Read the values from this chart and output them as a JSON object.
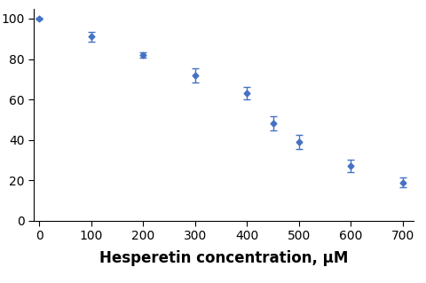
{
  "x": [
    0,
    100,
    200,
    300,
    400,
    450,
    500,
    600,
    700
  ],
  "y": [
    100,
    91,
    82,
    72,
    63,
    48,
    39,
    27,
    19
  ],
  "yerr": [
    0.5,
    2.5,
    1.5,
    3.5,
    3.0,
    3.5,
    3.5,
    3.0,
    2.5
  ],
  "xlabel": "Hesperetin concentration, μM",
  "ylabel": "",
  "xlim": [
    -10,
    720
  ],
  "ylim": [
    0,
    105
  ],
  "xticks": [
    0,
    100,
    200,
    300,
    400,
    500,
    600,
    700
  ],
  "yticks": [
    0,
    20,
    40,
    60,
    80,
    100
  ],
  "line_color": "#4472C4",
  "marker_color": "#4472C4",
  "marker": "D",
  "marker_size": 3.5,
  "line_width": 1.8,
  "background_color": "#ffffff",
  "grid": false,
  "xlabel_fontsize": 12,
  "tick_fontsize": 10,
  "capsize": 3,
  "elinewidth": 1.0,
  "capthick": 1.0
}
